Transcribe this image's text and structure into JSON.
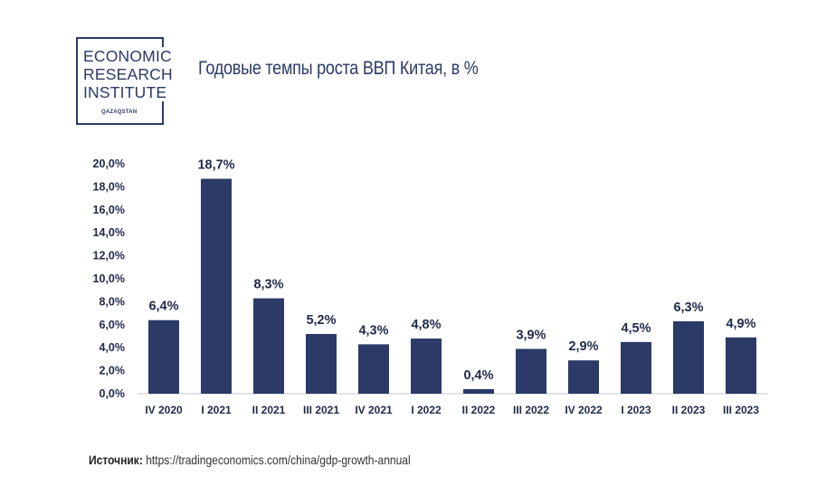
{
  "logo": {
    "name": "ECONOMIC\nRESEARCH\nINSTITUTE",
    "subtitle": "QAZAQSTAN"
  },
  "source": {
    "label": "Источник:",
    "url": "https://tradingeconomics.com/china/gdp-growth-annual"
  },
  "chart_data": {
    "type": "bar",
    "title": "Годовые темпы роста ВВП Китая, в %",
    "categories": [
      "IV 2020",
      "I 2021",
      "II 2021",
      "III 2021",
      "IV 2021",
      "I 2022",
      "II 2022",
      "III 2022",
      "IV 2022",
      "I 2023",
      "II 2023",
      "III 2023"
    ],
    "values": [
      6.4,
      18.7,
      8.3,
      5.2,
      4.3,
      4.8,
      0.4,
      3.9,
      2.9,
      4.5,
      6.3,
      4.9
    ],
    "data_labels": [
      "6,4%",
      "18,7%",
      "8,3%",
      "5,2%",
      "4,3%",
      "4,8%",
      "0,4%",
      "3,9%",
      "2,9%",
      "4,5%",
      "6,3%",
      "4,9%"
    ],
    "y_ticks": [
      "0,0%",
      "2,0%",
      "4,0%",
      "6,0%",
      "8,0%",
      "10,0%",
      "12,0%",
      "14,0%",
      "16,0%",
      "18,0%",
      "20,0%"
    ],
    "ylim": [
      0,
      20
    ],
    "grid": false,
    "legend": "none",
    "bar_color": "#2b3a67"
  }
}
